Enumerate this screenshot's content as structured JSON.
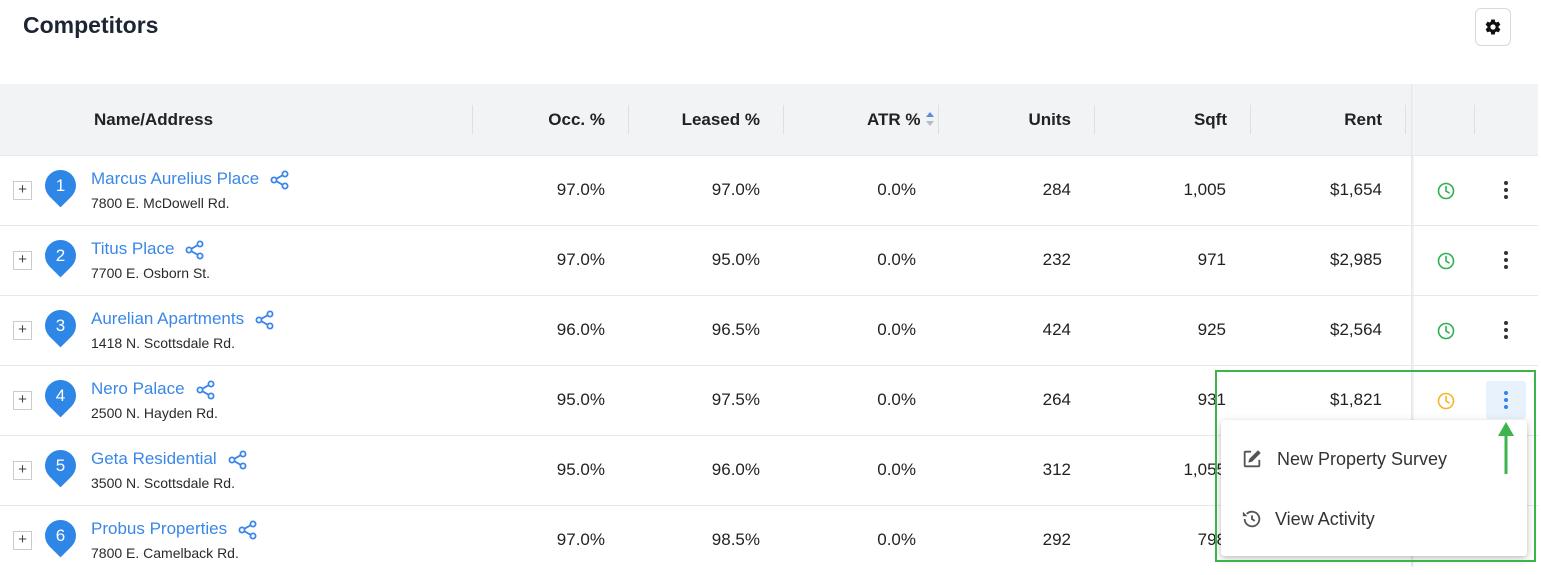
{
  "page": {
    "title": "Competitors",
    "settings_icon": "gear-icon"
  },
  "table": {
    "columns": {
      "name": "Name/Address",
      "occ": "Occ. %",
      "leased": "Leased %",
      "atr": "ATR %",
      "units": "Units",
      "sqft": "Sqft",
      "rent": "Rent"
    },
    "sort": {
      "column": "ATR %",
      "icon": "sort-icon"
    },
    "rows": [
      {
        "num": "1",
        "name": "Marcus Aurelius Place",
        "address": "7800 E. McDowell Rd.",
        "occ": "97.0%",
        "leased": "97.0%",
        "atr": "0.0%",
        "units": "284",
        "sqft": "1,005",
        "rent": "$1,654",
        "clock_color": "#2fb04f"
      },
      {
        "num": "2",
        "name": "Titus Place",
        "address": "7700 E. Osborn St.",
        "occ": "97.0%",
        "leased": "95.0%",
        "atr": "0.0%",
        "units": "232",
        "sqft": "971",
        "rent": "$2,985",
        "clock_color": "#2fb04f"
      },
      {
        "num": "3",
        "name": "Aurelian Apartments",
        "address": "1418 N. Scottsdale Rd.",
        "occ": "96.0%",
        "leased": "96.5%",
        "atr": "0.0%",
        "units": "424",
        "sqft": "925",
        "rent": "$2,564",
        "clock_color": "#2fb04f"
      },
      {
        "num": "4",
        "name": "Nero Palace",
        "address": "2500 N. Hayden Rd.",
        "occ": "95.0%",
        "leased": "97.5%",
        "atr": "0.0%",
        "units": "264",
        "sqft": "931",
        "rent": "$1,821",
        "clock_color": "#f5b528"
      },
      {
        "num": "5",
        "name": "Geta Residential",
        "address": "3500 N. Scottsdale Rd.",
        "occ": "95.0%",
        "leased": "96.0%",
        "atr": "0.0%",
        "units": "312",
        "sqft": "1,055",
        "rent": "",
        "clock_color": ""
      },
      {
        "num": "6",
        "name": "Probus Properties",
        "address": "7800 E. Camelback Rd.",
        "occ": "97.0%",
        "leased": "98.5%",
        "atr": "0.0%",
        "units": "292",
        "sqft": "798",
        "rent": "",
        "clock_color": ""
      }
    ]
  },
  "context_menu": {
    "items": [
      {
        "label": "New Property Survey",
        "icon": "edit-icon"
      },
      {
        "label": "View Activity",
        "icon": "history-icon"
      }
    ]
  },
  "colors": {
    "link": "#3a87e8",
    "pin": "#2e86e6",
    "highlight": "#3cb44b",
    "clock_ok": "#2fb04f",
    "clock_warn": "#f5b528"
  }
}
